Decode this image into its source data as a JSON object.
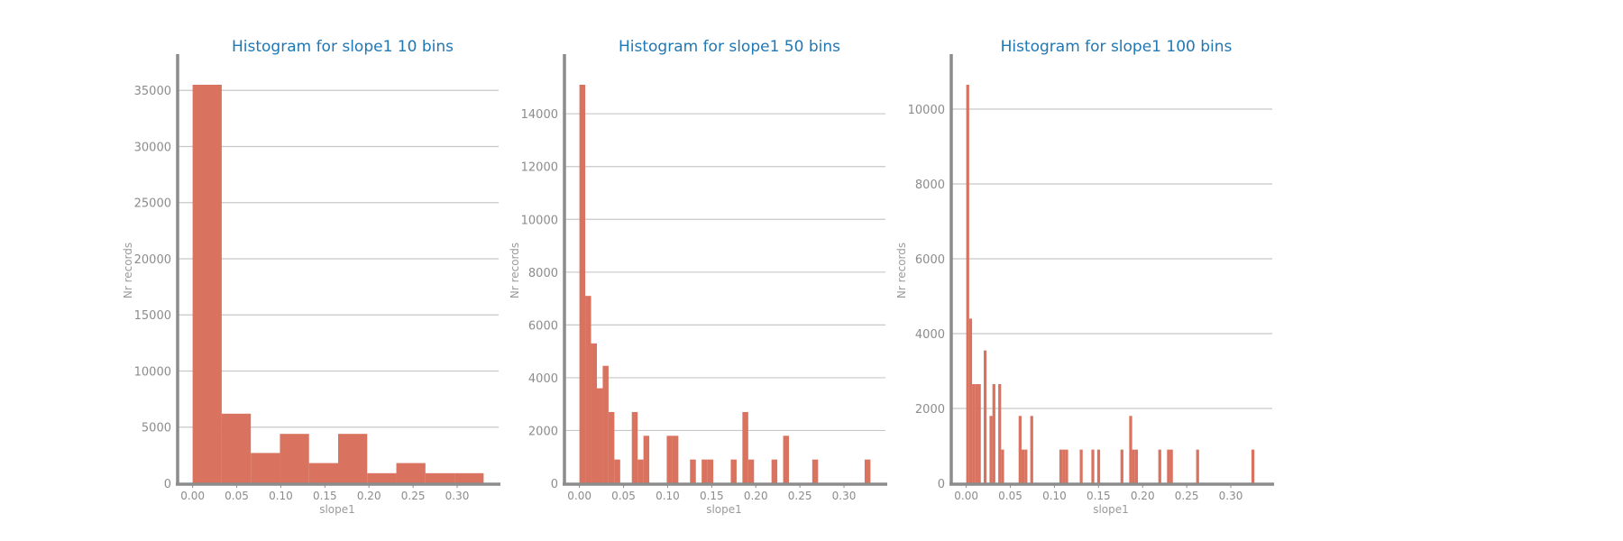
{
  "figure": {
    "colors": {
      "bar": "#d9725e",
      "axis": "#8c8c8c",
      "grid": "#c8c8c8",
      "title": "#1f77b4",
      "label": "#9a9a9a"
    }
  },
  "chart_data": [
    {
      "type": "bar",
      "title": "Histogram for slope1 10 bins",
      "xlabel": "slope1",
      "ylabel": "Nr records",
      "xlim": [
        -0.017,
        0.347
      ],
      "ylim": [
        0,
        35500
      ],
      "xticks": [
        0.0,
        0.05,
        0.1,
        0.15,
        0.2,
        0.25,
        0.3
      ],
      "xtick_labels": [
        "0.00",
        "0.05",
        "0.10",
        "0.15",
        "0.20",
        "0.25",
        "0.30"
      ],
      "yticks": [
        0,
        5000,
        10000,
        15000,
        20000,
        25000,
        30000,
        35000
      ],
      "grid": "horizontal",
      "bin_width": 0.033,
      "bin_starts": [
        0.0,
        0.033,
        0.066,
        0.099,
        0.132,
        0.165,
        0.198,
        0.231,
        0.264,
        0.297
      ],
      "values": [
        35500,
        6200,
        2700,
        4400,
        1800,
        4400,
        900,
        1800,
        900,
        900
      ]
    },
    {
      "type": "bar",
      "title": "Histogram for slope1 50 bins",
      "xlabel": "slope1",
      "ylabel": "Nr records",
      "xlim": [
        -0.017,
        0.347
      ],
      "ylim": [
        0,
        15100
      ],
      "xticks": [
        0.0,
        0.05,
        0.1,
        0.15,
        0.2,
        0.25,
        0.3
      ],
      "xtick_labels": [
        "0.00",
        "0.05",
        "0.10",
        "0.15",
        "0.20",
        "0.25",
        "0.30"
      ],
      "yticks": [
        0,
        2000,
        4000,
        6000,
        8000,
        10000,
        12000,
        14000
      ],
      "grid": "horizontal",
      "bin_width": 0.0066,
      "bin_starts": [
        0.0,
        0.0066,
        0.0132,
        0.0198,
        0.0264,
        0.033,
        0.0396,
        0.0594,
        0.066,
        0.0726,
        0.099,
        0.1056,
        0.1254,
        0.1386,
        0.1452,
        0.1716,
        0.1848,
        0.1914,
        0.2178,
        0.231,
        0.264,
        0.3234
      ],
      "values": [
        15100,
        7100,
        5300,
        3600,
        4450,
        2700,
        900,
        2700,
        900,
        1800,
        1800,
        1800,
        900,
        900,
        900,
        900,
        2700,
        900,
        900,
        1800,
        900,
        900
      ]
    },
    {
      "type": "bar",
      "title": "Histogram for slope1 100 bins",
      "xlabel": "slope1",
      "ylabel": "Nr records",
      "xlim": [
        -0.017,
        0.347
      ],
      "ylim": [
        0,
        10650
      ],
      "xticks": [
        0.0,
        0.05,
        0.1,
        0.15,
        0.2,
        0.25,
        0.3
      ],
      "xtick_labels": [
        "0.00",
        "0.05",
        "0.10",
        "0.15",
        "0.20",
        "0.25",
        "0.30"
      ],
      "yticks": [
        0,
        2000,
        4000,
        6000,
        8000,
        10000
      ],
      "grid": "horizontal",
      "bin_width": 0.0033,
      "bin_starts": [
        0.0,
        0.0033,
        0.0066,
        0.0099,
        0.0132,
        0.0198,
        0.0264,
        0.0297,
        0.0363,
        0.0396,
        0.0594,
        0.0627,
        0.066,
        0.0726,
        0.1056,
        0.1089,
        0.1122,
        0.1287,
        0.1419,
        0.1485,
        0.1749,
        0.1848,
        0.1881,
        0.1914,
        0.2178,
        0.2277,
        0.231,
        0.2607,
        0.3234
      ],
      "values": [
        10650,
        4400,
        2650,
        2650,
        2650,
        3550,
        1800,
        2650,
        2650,
        900,
        1800,
        900,
        900,
        1800,
        900,
        900,
        900,
        900,
        900,
        900,
        900,
        1800,
        900,
        900,
        900,
        900,
        900,
        900,
        900
      ]
    }
  ]
}
